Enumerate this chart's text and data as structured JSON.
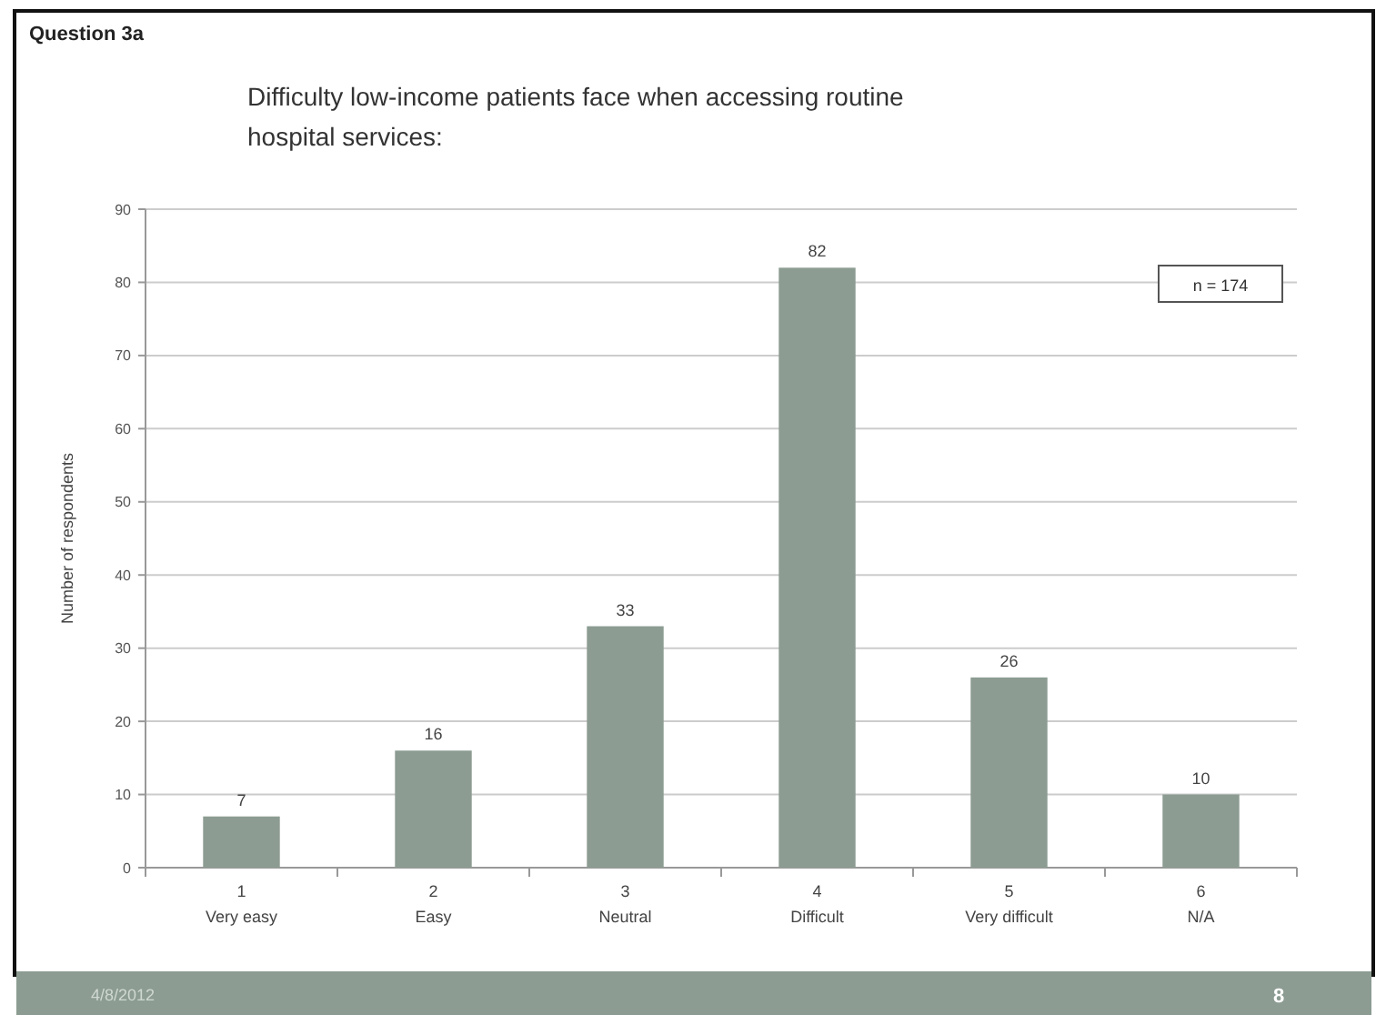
{
  "chart_data": {
    "type": "bar",
    "title": "Difficulty low-income patients face when accessing routine hospital services:",
    "ylabel": "Number of respondents",
    "categories": [
      "1\nVery easy",
      "2\nEasy",
      "3\nNeutral",
      "4\nDifficult",
      "5\nVery difficult",
      "6\nN/A"
    ],
    "values": [
      7,
      16,
      33,
      82,
      26,
      10
    ],
    "color": "#8c9c92",
    "data_labels": true,
    "ylim": [
      0,
      90
    ],
    "yticks": [
      0,
      10,
      20,
      30,
      40,
      50,
      60,
      70,
      80,
      90
    ],
    "grid": "y",
    "annotations": [
      "Question 3a",
      "n = 174",
      "4/8/2012",
      "8"
    ]
  }
}
